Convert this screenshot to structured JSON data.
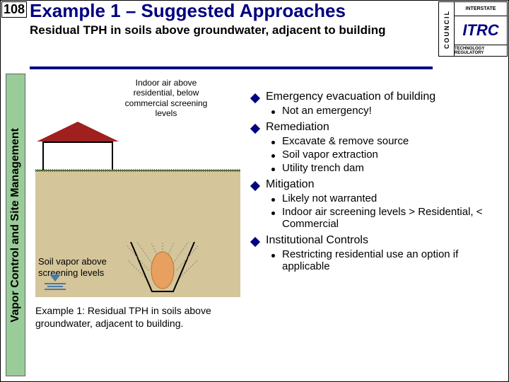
{
  "page_number": "108",
  "title": "Example 1 – Suggested Approaches",
  "subtitle": "Residual TPH in soils above groundwater, adjacent to building",
  "logo": {
    "council": "COUNCIL",
    "interstate": "INTERSTATE",
    "main": "ITRC",
    "footer": "TECHNOLOGY REGULATORY"
  },
  "sidebar": "Vapor Control and Site Management",
  "diagram": {
    "house_label": "Indoor air above residential, below commercial screening levels",
    "vapor_label": "Soil vapor above screening levels",
    "caption": "Example 1: Residual TPH in soils above groundwater, adjacent to building.",
    "colors": {
      "soil": "#d4c59a",
      "grass": "#5a6e3a",
      "roof": "#a02020",
      "source": "#e8a060",
      "water": "#4a7ba6"
    }
  },
  "bullets": [
    {
      "text": "Emergency evacuation of building",
      "subs": [
        {
          "text": "Not an emergency!"
        }
      ]
    },
    {
      "text": "Remediation",
      "subs": [
        {
          "text": "Excavate & remove source"
        },
        {
          "text": "Soil vapor extraction"
        },
        {
          "text": "Utility trench dam"
        }
      ]
    },
    {
      "text": "Mitigation",
      "subs": [
        {
          "text": "Likely not warranted"
        },
        {
          "text": "Indoor air screening levels > Residential, < Commercial"
        }
      ]
    },
    {
      "text": "Institutional Controls",
      "subs": [
        {
          "text": "Restricting residential use an option if applicable"
        }
      ]
    }
  ]
}
